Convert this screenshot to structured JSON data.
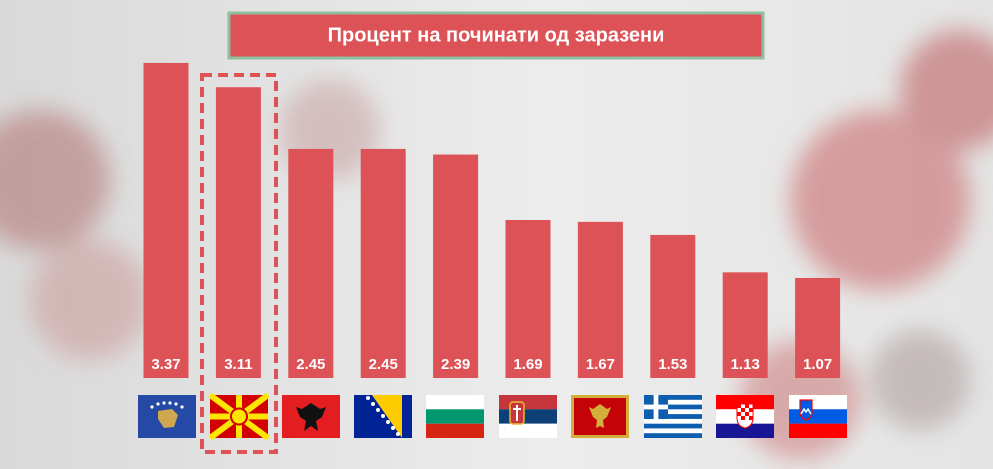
{
  "chart_data": {
    "type": "bar",
    "title": "Процент на починати од заразени",
    "values": [
      3.37,
      3.11,
      2.45,
      2.45,
      2.39,
      1.69,
      1.67,
      1.53,
      1.13,
      1.07
    ],
    "color": "#dd5256"
  }
}
